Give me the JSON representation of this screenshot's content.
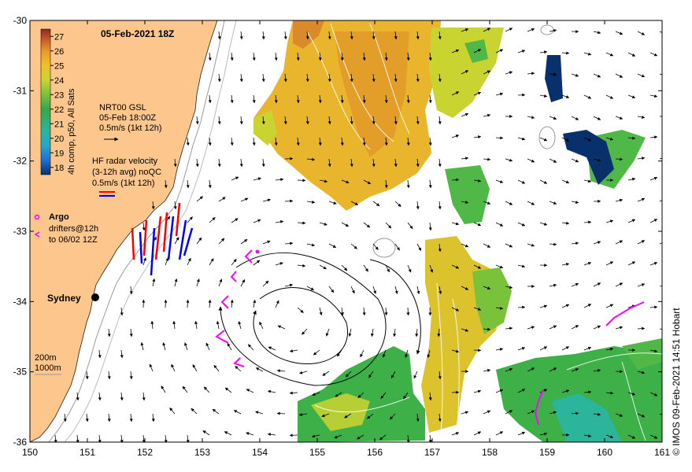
{
  "title": "05-Feb-2021 18Z",
  "credit": "© IMOS 09-Feb-2021 14:51 Hobart",
  "axes": {
    "lon_ticks": [
      "150",
      "151",
      "152",
      "153",
      "154",
      "155",
      "156",
      "157",
      "158",
      "159",
      "160",
      "161"
    ],
    "lat_ticks": [
      "-30",
      "-31",
      "-32",
      "-33",
      "-34",
      "-35",
      "-36"
    ],
    "lon_range": [
      150,
      161
    ],
    "lat_range": [
      -36,
      -30
    ]
  },
  "colorbar": {
    "label": "4h comp, p50, All Sats",
    "ticks": [
      "27",
      "26",
      "25",
      "24",
      "23",
      "22",
      "21",
      "20",
      "19",
      "18"
    ],
    "range_c": [
      17.5,
      27.5
    ],
    "colors": [
      "#08306b",
      "#1f6fd1",
      "#25a8c8",
      "#2bb59a",
      "#37a84a",
      "#79c23a",
      "#c9d431",
      "#f2c02a",
      "#e79a2a",
      "#c8582a",
      "#8e2a1c"
    ]
  },
  "legend": {
    "gsl_title": "NRT00 GSL",
    "gsl_time": "05-Feb 18:00Z",
    "gsl_scale": "0.5m/s (1kt 12h)",
    "hf_title": "HF radar velocity",
    "hf_sub": "(3-12h avg) noQC",
    "hf_scale": "0.5m/s (1kt 12h)",
    "argo": "Argo",
    "drifters_1": "drifters@12h",
    "drifters_2": "to 06/02 12Z"
  },
  "places": {
    "sydney": "Sydney",
    "depth_200": "200m",
    "depth_1000": "1000m"
  },
  "colors": {
    "land": "#fcc68c",
    "warm_sst": "#e9b52c",
    "mid_sst": "#c9d431",
    "cool_sst": "#3db048",
    "drifter": "#ff00ff",
    "hf_red": "#ff0000",
    "hf_blue": "#0000ff"
  }
}
